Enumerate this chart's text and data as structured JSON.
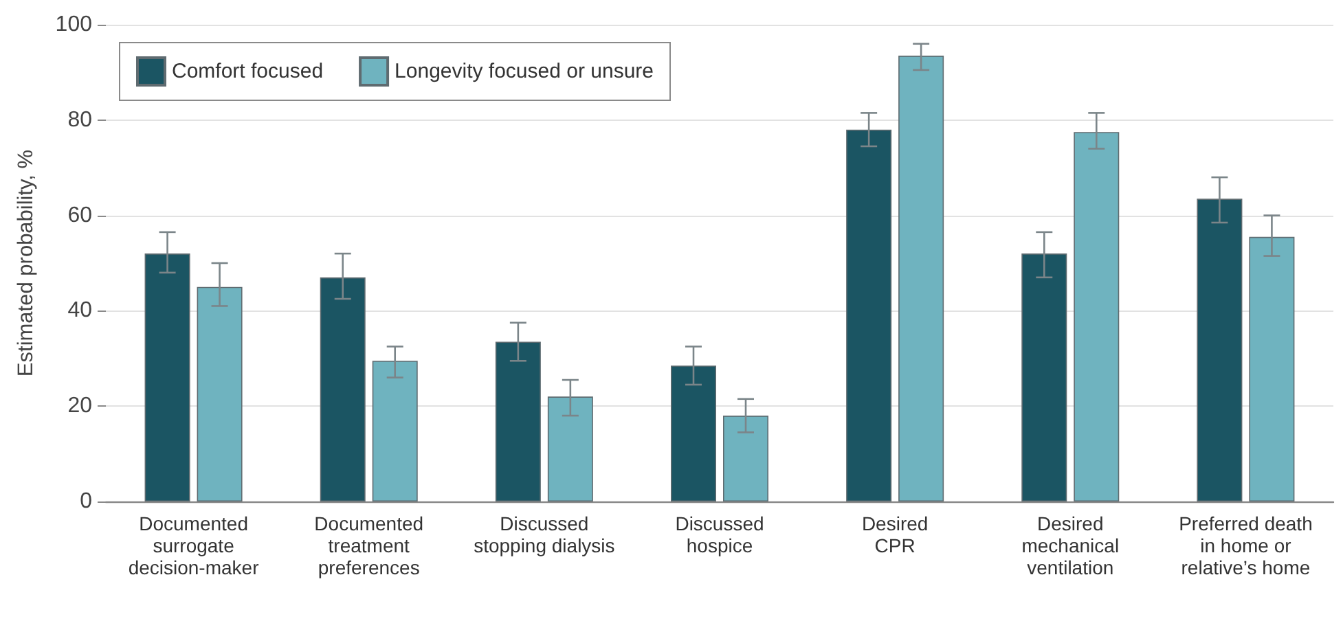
{
  "chart_data": {
    "type": "bar",
    "ylabel": "Estimated probability, %",
    "categories": [
      "Documented\nsurrogate\ndecision-maker",
      "Documented\ntreatment\npreferences",
      "Discussed\nstopping dialysis",
      "Discussed\nhospice",
      "Desired\nCPR",
      "Desired\nmechanical\nventilation",
      "Preferred death\nin home or\nrelative’s home"
    ],
    "series": [
      {
        "name": "Comfort focused",
        "color": "#1b5563",
        "values": [
          52,
          47,
          33.5,
          28.5,
          78,
          52,
          63.5
        ],
        "errors": [
          [
            48,
            56.5
          ],
          [
            42.5,
            52
          ],
          [
            29.5,
            37.5
          ],
          [
            24.5,
            32.5
          ],
          [
            74.5,
            81.5
          ],
          [
            47,
            56.5
          ],
          [
            58.5,
            68
          ]
        ]
      },
      {
        "name": "Longevity focused or unsure",
        "color": "#6fb3bf",
        "values": [
          45,
          29.5,
          22,
          18,
          93.5,
          77.5,
          55.5
        ],
        "errors": [
          [
            41,
            50
          ],
          [
            26,
            32.5
          ],
          [
            18,
            25.5
          ],
          [
            14.5,
            21.5
          ],
          [
            90.5,
            96
          ],
          [
            74,
            81.5
          ],
          [
            51.5,
            60
          ]
        ]
      }
    ],
    "ylim": [
      0,
      100
    ],
    "yticks": [
      0,
      20,
      40,
      60,
      80,
      100
    ],
    "grid": "y",
    "legend": "top left"
  }
}
